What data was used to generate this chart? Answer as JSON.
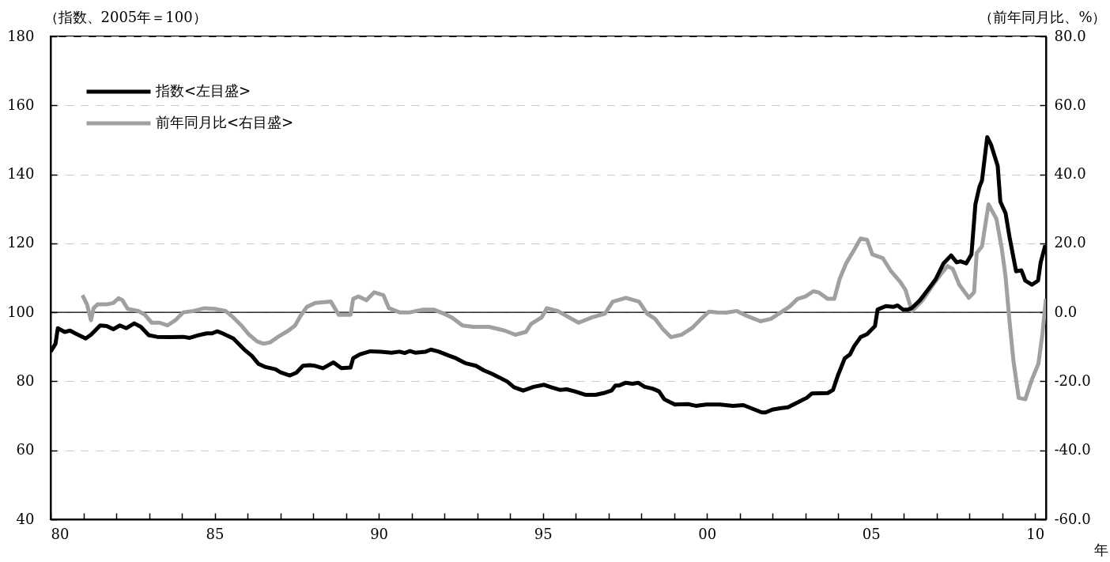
{
  "chart_data": {
    "type": "line",
    "xlabel": "年",
    "ylabel": "（指数、2005年＝100）",
    "y2label": "（前年同月比、%）",
    "xlim": [
      1980,
      2010.33
    ],
    "xticks": [
      {
        "value": 1980,
        "label": "80"
      },
      {
        "value": 1981,
        "label": null
      },
      {
        "value": 1982,
        "label": null
      },
      {
        "value": 1983,
        "label": null
      },
      {
        "value": 1984,
        "label": null
      },
      {
        "value": 1985,
        "label": "85"
      },
      {
        "value": 1986,
        "label": null
      },
      {
        "value": 1987,
        "label": null
      },
      {
        "value": 1988,
        "label": null
      },
      {
        "value": 1989,
        "label": null
      },
      {
        "value": 1990,
        "label": "90"
      },
      {
        "value": 1991,
        "label": null
      },
      {
        "value": 1992,
        "label": null
      },
      {
        "value": 1993,
        "label": null
      },
      {
        "value": 1994,
        "label": null
      },
      {
        "value": 1995,
        "label": "95"
      },
      {
        "value": 1996,
        "label": null
      },
      {
        "value": 1997,
        "label": null
      },
      {
        "value": 1998,
        "label": null
      },
      {
        "value": 1999,
        "label": null
      },
      {
        "value": 2000,
        "label": "00"
      },
      {
        "value": 2001,
        "label": null
      },
      {
        "value": 2002,
        "label": null
      },
      {
        "value": 2003,
        "label": null
      },
      {
        "value": 2004,
        "label": null
      },
      {
        "value": 2005,
        "label": "05"
      },
      {
        "value": 2006,
        "label": null
      },
      {
        "value": 2007,
        "label": null
      },
      {
        "value": 2008,
        "label": null
      },
      {
        "value": 2009,
        "label": null
      },
      {
        "value": 2010,
        "label": "10"
      }
    ],
    "ylim": [
      40,
      180
    ],
    "yticks": [
      40,
      60,
      80,
      100,
      120,
      140,
      160,
      180
    ],
    "y2lim": [
      -60,
      80
    ],
    "y2ticks": [
      {
        "value": -60,
        "label": "-60.0"
      },
      {
        "value": -40,
        "label": "-40.0"
      },
      {
        "value": -20,
        "label": "-20.0"
      },
      {
        "value": 0,
        "label": "0.0"
      },
      {
        "value": 20,
        "label": "20.0"
      },
      {
        "value": 40,
        "label": "40.0"
      },
      {
        "value": 60,
        "label": "60.0"
      },
      {
        "value": 80,
        "label": "80.0"
      }
    ],
    "grid": "y",
    "legend": "top left",
    "ref_lines": [
      {
        "axis": "y2",
        "value": 0,
        "color": "#000000"
      }
    ],
    "series": [
      {
        "name": "指数<左目盛>",
        "color": "#000000",
        "x": [
          1980,
          1980.15,
          1980.22,
          1980.43,
          1980.59,
          1980.75,
          1981.07,
          1981.23,
          1981.51,
          1981.71,
          1981.91,
          1982.11,
          1982.31,
          1982.55,
          1982.75,
          1982.99,
          1983.24,
          1983.64,
          1984.04,
          1984.24,
          1984.52,
          1984.76,
          1984.92,
          1985.08,
          1985.24,
          1985.57,
          1985.89,
          1986.13,
          1986.33,
          1986.53,
          1986.85,
          1987.01,
          1987.29,
          1987.49,
          1987.69,
          1987.9,
          1988.06,
          1988.3,
          1988.62,
          1988.86,
          1989.14,
          1989.22,
          1989.42,
          1989.74,
          1990.06,
          1990.39,
          1990.63,
          1990.79,
          1990.95,
          1991.11,
          1991.43,
          1991.59,
          1991.83,
          1992.15,
          1992.35,
          1992.63,
          1992.96,
          1993.2,
          1993.44,
          1993.68,
          1993.92,
          1994.12,
          1994.4,
          1994.72,
          1995.04,
          1995.25,
          1995.53,
          1995.73,
          1995.97,
          1996.29,
          1996.61,
          1996.85,
          1997.09,
          1997.21,
          1997.33,
          1997.53,
          1997.73,
          1997.9,
          1998.1,
          1998.34,
          1998.54,
          1998.7,
          1999.02,
          1999.42,
          1999.66,
          1999.98,
          2000.39,
          2000.79,
          2001.11,
          2001.35,
          2001.67,
          2001.79,
          2001.99,
          2002.23,
          2002.47,
          2002.72,
          2003.04,
          2003.2,
          2003.68,
          2003.84,
          2003.99,
          2004.2,
          2004.36,
          2004.48,
          2004.68,
          2004.88,
          2005.12,
          2005.2,
          2005.45,
          2005.69,
          2005.81,
          2005.97,
          2006.13,
          2006.25,
          2006.49,
          2006.73,
          2006.97,
          2007.21,
          2007.44,
          2007.61,
          2007.73,
          2007.9,
          2008.06,
          2008.18,
          2008.3,
          2008.38,
          2008.54,
          2008.66,
          2008.86,
          2008.94,
          2009.1,
          2009.22,
          2009.42,
          2009.58,
          2009.7,
          2009.9,
          2010.09,
          2010.17,
          2010.31
        ],
        "values": [
          88.6,
          90.9,
          95.4,
          94.3,
          94.7,
          93.9,
          92.4,
          93.5,
          96.2,
          96.0,
          95.1,
          96.2,
          95.4,
          96.8,
          95.8,
          93.4,
          92.9,
          92.8,
          92.9,
          92.6,
          93.4,
          93.9,
          93.9,
          94.5,
          93.9,
          92.4,
          89.3,
          87.4,
          85.1,
          84.2,
          83.5,
          82.6,
          81.7,
          82.5,
          84.5,
          84.7,
          84.5,
          83.8,
          85.5,
          83.8,
          84.0,
          86.7,
          87.8,
          88.7,
          88.6,
          88.3,
          88.6,
          88.2,
          88.8,
          88.3,
          88.6,
          89.2,
          88.6,
          87.4,
          86.7,
          85.3,
          84.5,
          83.2,
          82.2,
          81.1,
          79.9,
          78.3,
          77.3,
          78.4,
          79.0,
          78.3,
          77.5,
          77.7,
          77.1,
          76.1,
          76.1,
          76.6,
          77.3,
          78.8,
          78.8,
          79.6,
          79.3,
          79.6,
          78.4,
          77.9,
          77.1,
          74.8,
          73.3,
          73.4,
          72.9,
          73.3,
          73.3,
          72.9,
          73.1,
          72.2,
          71.0,
          71.0,
          71.8,
          72.2,
          72.5,
          73.7,
          75.2,
          76.5,
          76.6,
          77.5,
          81.7,
          86.7,
          87.8,
          90.1,
          92.8,
          93.7,
          96.0,
          100.8,
          101.8,
          101.6,
          102.0,
          100.8,
          100.8,
          101.3,
          103.5,
          106.5,
          109.6,
          114.2,
          116.5,
          114.5,
          114.8,
          114.2,
          116.8,
          131.3,
          136.3,
          138.2,
          150.8,
          148.5,
          142.4,
          132.1,
          128.7,
          121.8,
          111.9,
          112.2,
          109.2,
          108.0,
          109.2,
          114.5,
          119.5
        ]
      },
      {
        "name": "前年同月比<右目盛>",
        "color": "#a0a0a0",
        "axis": "y2",
        "x": [
          1980.97,
          1981.11,
          1981.23,
          1981.31,
          1981.43,
          1981.71,
          1981.91,
          1982.07,
          1982.19,
          1982.35,
          1982.67,
          1982.87,
          1983.08,
          1983.32,
          1983.56,
          1983.8,
          1984.04,
          1984.36,
          1984.68,
          1985,
          1985.33,
          1985.57,
          1985.81,
          1986.05,
          1986.29,
          1986.49,
          1986.69,
          1986.93,
          1987.25,
          1987.45,
          1987.61,
          1987.81,
          1988.06,
          1988.54,
          1988.78,
          1989.14,
          1989.22,
          1989.38,
          1989.62,
          1989.86,
          1990.14,
          1990.31,
          1990.63,
          1990.95,
          1991.35,
          1991.67,
          1991.99,
          1992.23,
          1992.55,
          1992.87,
          1993.36,
          1993.84,
          1994.16,
          1994.48,
          1994.64,
          1994.96,
          1995.12,
          1995.45,
          1995.8,
          1996.09,
          1996.49,
          1996.89,
          1997.13,
          1997.53,
          1997.93,
          1998.18,
          1998.42,
          1998.66,
          1998.9,
          1999.22,
          1999.54,
          1999.78,
          2000.06,
          2000.31,
          2000.59,
          2000.91,
          2001.23,
          2001.63,
          2001.95,
          2002.19,
          2002.51,
          2002.76,
          2003,
          2003.24,
          2003.4,
          2003.68,
          2003.88,
          2004.04,
          2004.24,
          2004.48,
          2004.68,
          2004.88,
          2005.04,
          2005.24,
          2005.36,
          2005.61,
          2005.89,
          2006.05,
          2006.17,
          2006.25,
          2006.57,
          2006.89,
          2007.13,
          2007.33,
          2007.49,
          2007.69,
          2007.98,
          2008.14,
          2008.22,
          2008.38,
          2008.58,
          2008.82,
          2008.98,
          2009.1,
          2009.22,
          2009.34,
          2009.5,
          2009.7,
          2009.9,
          2010.1,
          2010.22,
          2010.33
        ],
        "values": [
          5.0,
          2.3,
          -2.3,
          1.2,
          2.3,
          2.3,
          2.7,
          4.1,
          3.5,
          1.0,
          0.4,
          -0.7,
          -3.0,
          -3.0,
          -3.8,
          -2.3,
          0.0,
          0.4,
          1.2,
          1.0,
          0.4,
          -1.5,
          -3.8,
          -6.5,
          -8.4,
          -9.1,
          -8.7,
          -7.1,
          -5.3,
          -3.8,
          -1.1,
          1.6,
          2.7,
          3.1,
          -0.7,
          -0.7,
          3.9,
          4.6,
          3.5,
          5.8,
          5.0,
          1.2,
          0.0,
          0.0,
          0.8,
          0.8,
          -0.4,
          -1.5,
          -3.8,
          -4.2,
          -4.2,
          -5.3,
          -6.5,
          -5.7,
          -3.4,
          -1.5,
          1.2,
          0.4,
          -1.5,
          -3.0,
          -1.5,
          -0.4,
          3.1,
          4.2,
          3.1,
          -0.4,
          -1.9,
          -4.9,
          -7.2,
          -6.5,
          -4.6,
          -2.3,
          0.2,
          0.0,
          -0.1,
          0.4,
          -1.1,
          -2.6,
          -1.9,
          -0.4,
          1.6,
          3.9,
          4.6,
          6.1,
          5.8,
          3.9,
          3.9,
          9.6,
          14.2,
          18.0,
          21.4,
          21.0,
          16.8,
          16.1,
          15.7,
          11.9,
          8.8,
          6.5,
          2.7,
          0.4,
          3.5,
          8.0,
          11.1,
          13.4,
          12.6,
          8.0,
          4.2,
          5.8,
          17.2,
          19.1,
          31.3,
          27.1,
          18.7,
          10.3,
          -2.6,
          -14.1,
          -24.8,
          -25.2,
          -19.5,
          -14.9,
          -6.5,
          3.9
        ]
      }
    ]
  }
}
